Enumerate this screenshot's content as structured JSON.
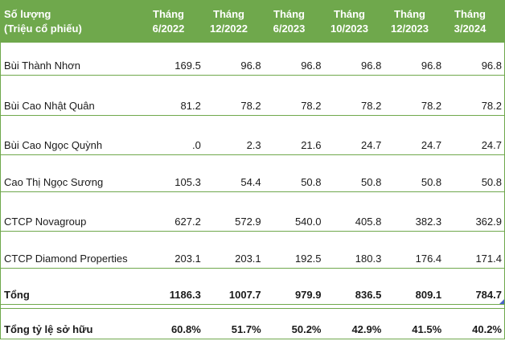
{
  "table": {
    "title_line1": "Số lượng",
    "title_line2": "(Triệu cổ phiếu)",
    "unit": "Triệu cổ phiếu",
    "columns": [
      {
        "line1": "Tháng",
        "line2": "6/2022"
      },
      {
        "line1": "Tháng",
        "line2": "12/2022"
      },
      {
        "line1": "Tháng",
        "line2": "6/2023"
      },
      {
        "line1": "Tháng",
        "line2": "10/2023"
      },
      {
        "line1": "Tháng",
        "line2": "12/2023"
      },
      {
        "line1": "Tháng",
        "line2": "3/2024"
      }
    ],
    "rows": [
      {
        "label": "Bùi Thành Nhơn",
        "values": [
          "169.5",
          "96.8",
          "96.8",
          "96.8",
          "96.8",
          "96.8"
        ]
      },
      {
        "label": "Bùi Cao Nhật Quân",
        "values": [
          "81.2",
          "78.2",
          "78.2",
          "78.2",
          "78.2",
          "78.2"
        ]
      },
      {
        "label": "Bùi Cao Ngọc Quỳnh",
        "values": [
          ".0",
          "2.3",
          "21.6",
          "24.7",
          "24.7",
          "24.7"
        ]
      },
      {
        "label": "Cao Thị Ngọc Sương",
        "values": [
          "105.3",
          "54.4",
          "50.8",
          "50.8",
          "50.8",
          "50.8"
        ]
      },
      {
        "label": "CTCP Novagroup",
        "values": [
          "627.2",
          "572.9",
          "540.0",
          "405.8",
          "382.3",
          "362.9"
        ]
      },
      {
        "label": "CTCP Diamond Properties",
        "values": [
          "203.1",
          "203.1",
          "192.5",
          "180.3",
          "176.4",
          "171.4"
        ]
      }
    ],
    "total_row": {
      "label": "Tổng",
      "values": [
        "1186.3",
        "1007.7",
        "979.9",
        "836.5",
        "809.1",
        "784.7"
      ]
    },
    "ratio_row": {
      "label": "Tổng tỷ lệ sở hữu",
      "values": [
        "60.8%",
        "51.7%",
        "50.2%",
        "42.9%",
        "41.5%",
        "40.2%"
      ]
    }
  },
  "colors": {
    "header_background": "#6FA84C",
    "header_text": "#FFFFFF",
    "border_green": "#6FA84C",
    "body_text": "#1A1A1A",
    "corner_marker_blue": "#4A63C8"
  },
  "chart_data": {
    "type": "table",
    "title": "Số lượng (Triệu cổ phiếu)",
    "categories": [
      "Tháng 6/2022",
      "Tháng 12/2022",
      "Tháng 6/2023",
      "Tháng 10/2023",
      "Tháng 12/2023",
      "Tháng 3/2024"
    ],
    "series": [
      {
        "name": "Bùi Thành Nhơn",
        "values": [
          169.5,
          96.8,
          96.8,
          96.8,
          96.8,
          96.8
        ]
      },
      {
        "name": "Bùi Cao Nhật Quân",
        "values": [
          81.2,
          78.2,
          78.2,
          78.2,
          78.2,
          78.2
        ]
      },
      {
        "name": "Bùi Cao Ngọc Quỳnh",
        "values": [
          0.0,
          2.3,
          21.6,
          24.7,
          24.7,
          24.7
        ]
      },
      {
        "name": "Cao Thị Ngọc Sương",
        "values": [
          105.3,
          54.4,
          50.8,
          50.8,
          50.8,
          50.8
        ]
      },
      {
        "name": "CTCP Novagroup",
        "values": [
          627.2,
          572.9,
          540.0,
          405.8,
          382.3,
          362.9
        ]
      },
      {
        "name": "CTCP Diamond Properties",
        "values": [
          203.1,
          203.1,
          192.5,
          180.3,
          176.4,
          171.4
        ]
      },
      {
        "name": "Tổng",
        "values": [
          1186.3,
          1007.7,
          979.9,
          836.5,
          809.1,
          784.7
        ]
      },
      {
        "name": "Tổng tỷ lệ sở hữu (%)",
        "values": [
          60.8,
          51.7,
          50.2,
          42.9,
          41.5,
          40.2
        ]
      }
    ]
  }
}
